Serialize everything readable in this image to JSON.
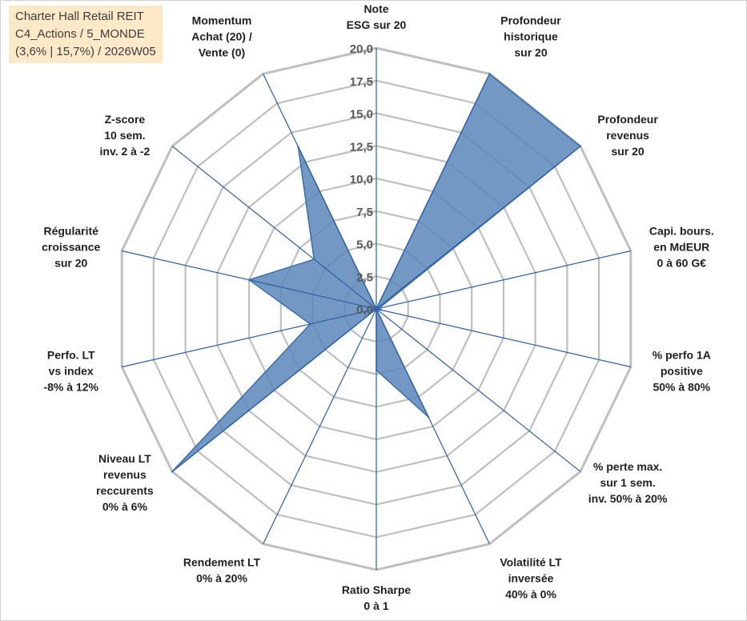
{
  "header": {
    "line1": "Charter Hall Retail REIT",
    "line2": "C4_Actions / 5_MONDE",
    "line3": "(3,6% | 15,7%) / 2026W05"
  },
  "colors": {
    "fill": "#5b86b8",
    "stroke": "#3c6eaa",
    "grid": "#bfbfbf",
    "spoke": "#2e5fa6",
    "title_bg": "#fde9c7"
  },
  "chart_data": {
    "type": "radar",
    "rmin": 0,
    "rmax": 20,
    "ticks": [
      "0,0",
      "2,5",
      "5,0",
      "7,5",
      "10,0",
      "12,5",
      "15,0",
      "17,5",
      "20,0"
    ],
    "axes": [
      {
        "lines": [
          "Note",
          "ESG sur 20"
        ],
        "value": 0
      },
      {
        "lines": [
          "Profondeur",
          "historique",
          "sur 20"
        ],
        "value": 20
      },
      {
        "lines": [
          "Profondeur",
          "revenus",
          "sur 20"
        ],
        "value": 20
      },
      {
        "lines": [
          "Capi. bours.",
          "en MdEUR",
          "0 à 60 G€"
        ],
        "value": 0.2
      },
      {
        "lines": [
          "% perfo 1A",
          "positive",
          "50% à 80%"
        ],
        "value": 0.4
      },
      {
        "lines": [
          "% perte max.",
          "sur 1 sem.",
          "inv. 50% à 20%"
        ],
        "value": 0
      },
      {
        "lines": [
          "Volatilité LT",
          "inversée",
          "40% à 0%"
        ],
        "value": 9.2
      },
      {
        "lines": [
          "Ratio Sharpe",
          "0 à 1"
        ],
        "value": 4.7
      },
      {
        "lines": [
          "Rendement LT",
          "0% à 20%"
        ],
        "value": 0
      },
      {
        "lines": [
          "Niveau LT",
          "revenus",
          "reccurents",
          "0% à 6%"
        ],
        "value": 20
      },
      {
        "lines": [
          "Perfo. LT",
          "vs index",
          "-8% à 12%"
        ],
        "value": 5.2
      },
      {
        "lines": [
          "Régularité",
          "croissance",
          "sur 20"
        ],
        "value": 10
      },
      {
        "lines": [
          "Z-score",
          "10 sem.",
          "inv. 2 à -2"
        ],
        "value": 6.1
      },
      {
        "lines": [
          "Momentum",
          "Achat (20) /",
          "Vente (0)"
        ],
        "value": 13.8
      }
    ]
  }
}
